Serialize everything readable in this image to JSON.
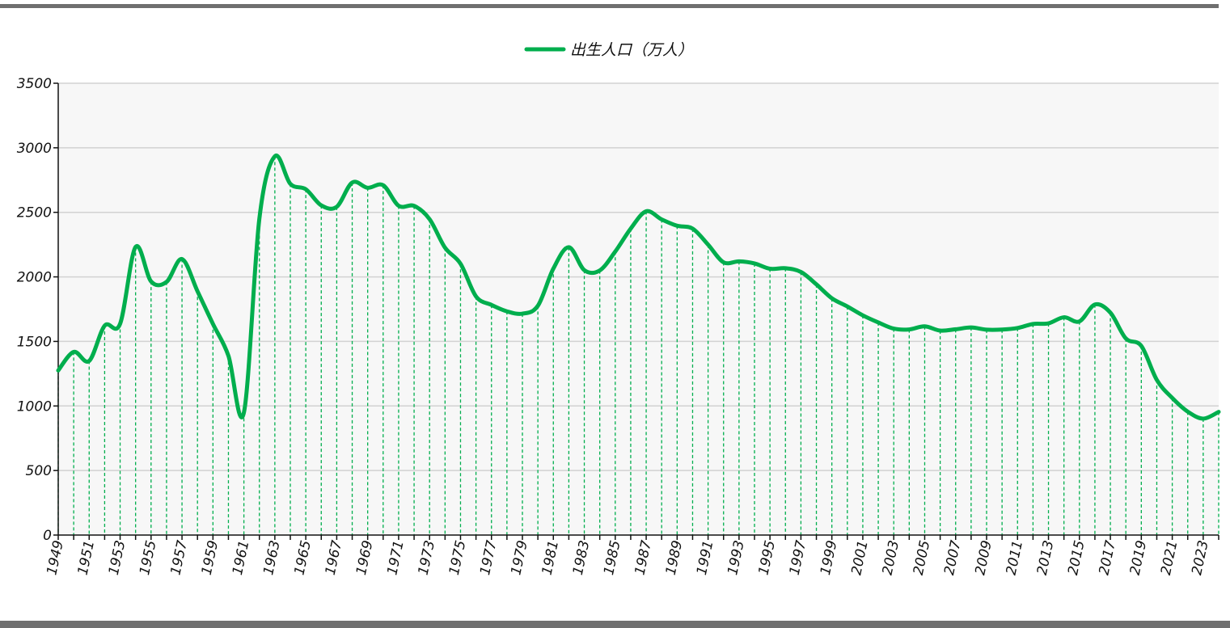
{
  "chart_data": {
    "type": "line",
    "title": "",
    "xlabel": "",
    "ylabel": "",
    "ylim": [
      0,
      3500
    ],
    "yticks": [
      0,
      500,
      1000,
      1500,
      2000,
      2500,
      3000,
      3500
    ],
    "grid": true,
    "legend_position": "top-center",
    "line_color": "#00ae4d",
    "x": [
      1949,
      1950,
      1951,
      1952,
      1953,
      1954,
      1955,
      1956,
      1957,
      1958,
      1959,
      1960,
      1961,
      1962,
      1963,
      1964,
      1965,
      1966,
      1967,
      1968,
      1969,
      1970,
      1971,
      1972,
      1973,
      1974,
      1975,
      1976,
      1977,
      1978,
      1979,
      1980,
      1981,
      1982,
      1983,
      1984,
      1985,
      1986,
      1987,
      1988,
      1989,
      1990,
      1991,
      1992,
      1993,
      1994,
      1995,
      1996,
      1997,
      1998,
      1999,
      2000,
      2001,
      2002,
      2003,
      2004,
      2005,
      2006,
      2007,
      2008,
      2009,
      2010,
      2011,
      2012,
      2013,
      2014,
      2015,
      2016,
      2017,
      2018,
      2019,
      2020,
      2021,
      2022,
      2023,
      2024
    ],
    "xtick_labels": [
      "1949",
      "1951",
      "1953",
      "1955",
      "1957",
      "1959",
      "1961",
      "1963",
      "1965",
      "1967",
      "1969",
      "1971",
      "1973",
      "1975",
      "1977",
      "1979",
      "1981",
      "1983",
      "1985",
      "1987",
      "1989",
      "1991",
      "1993",
      "1995",
      "1997",
      "1999",
      "2001",
      "2003",
      "2005",
      "2007",
      "2009",
      "2011",
      "2013",
      "2015",
      "2017",
      "2019",
      "2021",
      "2023"
    ],
    "series": [
      {
        "name": "出生人口（万人）",
        "values": [
          1275,
          1419,
          1349,
          1622,
          1637,
          2232,
          1965,
          1961,
          2138,
          1889,
          1635,
          1389,
          949,
          2451,
          2934,
          2721,
          2679,
          2554,
          2543,
          2731,
          2690,
          2710,
          2551,
          2550,
          2447,
          2226,
          2102,
          1849,
          1783,
          1733,
          1715,
          1776,
          2064,
          2230,
          2052,
          2050,
          2196,
          2374,
          2508,
          2445,
          2396,
          2374,
          2250,
          2113,
          2120,
          2104,
          2063,
          2067,
          2038,
          1942,
          1834,
          1771,
          1702,
          1647,
          1599,
          1593,
          1617,
          1584,
          1594,
          1608,
          1591,
          1592,
          1604,
          1635,
          1640,
          1687,
          1655,
          1786,
          1723,
          1523,
          1465,
          1202,
          1062,
          956,
          902,
          954
        ]
      }
    ]
  }
}
